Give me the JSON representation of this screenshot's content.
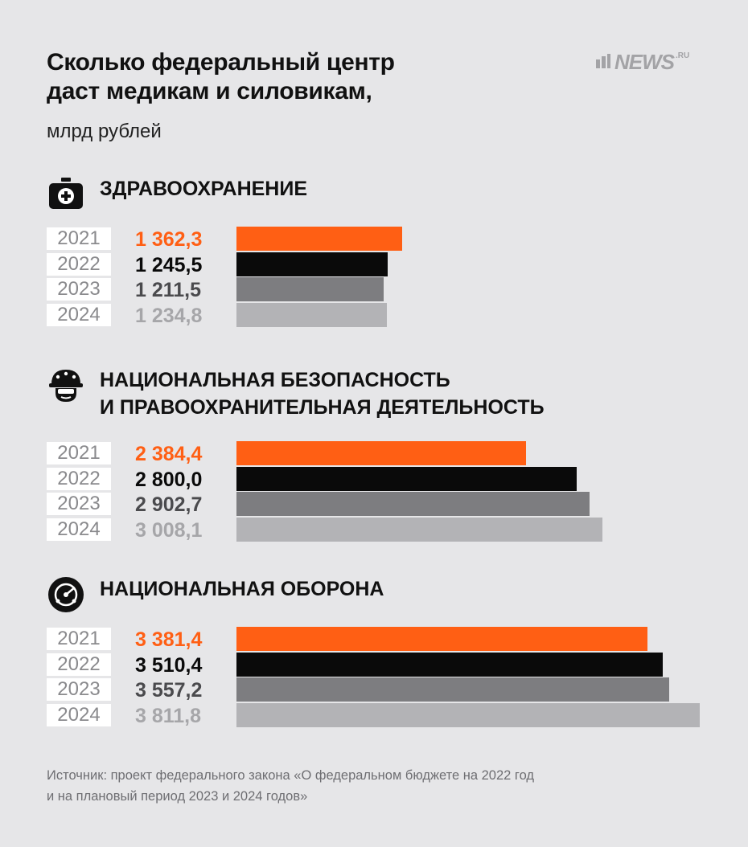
{
  "header": {
    "title_lines": [
      "Сколько федеральный центр",
      "даст медикам и силовикам,"
    ],
    "subtitle": "млрд рублей"
  },
  "logo": {
    "text": "NEWS",
    "suffix": ".RU",
    "color": "#a3a3a6"
  },
  "colors": {
    "2021": "#ff5f14",
    "2022": "#0a0a0a",
    "2023": "#7d7d80",
    "2024": "#b3b3b6"
  },
  "value_text_colors": {
    "2021": "#ff5f14",
    "2022": "#0a0a0a",
    "2023": "#4a4a4d",
    "2024": "#a6a6a9"
  },
  "chart_data": {
    "type": "bar",
    "orientation": "horizontal",
    "unit": "млрд рублей",
    "categories": [
      "2021",
      "2022",
      "2023",
      "2024"
    ],
    "groups": [
      {
        "name_lines": [
          "ЗДРАВООХРАНЕНИЕ"
        ],
        "icon": "first-aid-kit-icon",
        "values": [
          1362.3,
          1245.5,
          1211.5,
          1234.8
        ],
        "labels": [
          "1 362,3",
          "1 245,5",
          "1 211,5",
          "1 234,8"
        ]
      },
      {
        "name_lines": [
          "НАЦИОНАЛЬНАЯ БЕЗОПАСНОСТЬ",
          "И ПРАВООХРАНИТЕЛЬНАЯ ДЕЯТЕЛЬНОСТЬ"
        ],
        "icon": "police-helmet-icon",
        "values": [
          2384.4,
          2800.0,
          2902.7,
          3008.1
        ],
        "labels": [
          "2 384,4",
          "2 800,0",
          "2 902,7",
          "3 008,1"
        ]
      },
      {
        "name_lines": [
          "НАЦИОНАЛЬНАЯ ОБОРОНА"
        ],
        "icon": "radar-icon",
        "values": [
          3381.4,
          3510.4,
          3557.2,
          3811.8
        ],
        "labels": [
          "3 381,4",
          "3 510,4",
          "3 557,2",
          "3 811,8"
        ]
      }
    ]
  },
  "source_lines": [
    "Источник: проект федерального закона «О федеральном бюджете на 2022 год",
    "и на плановый период 2023 и 2024 годов»"
  ]
}
